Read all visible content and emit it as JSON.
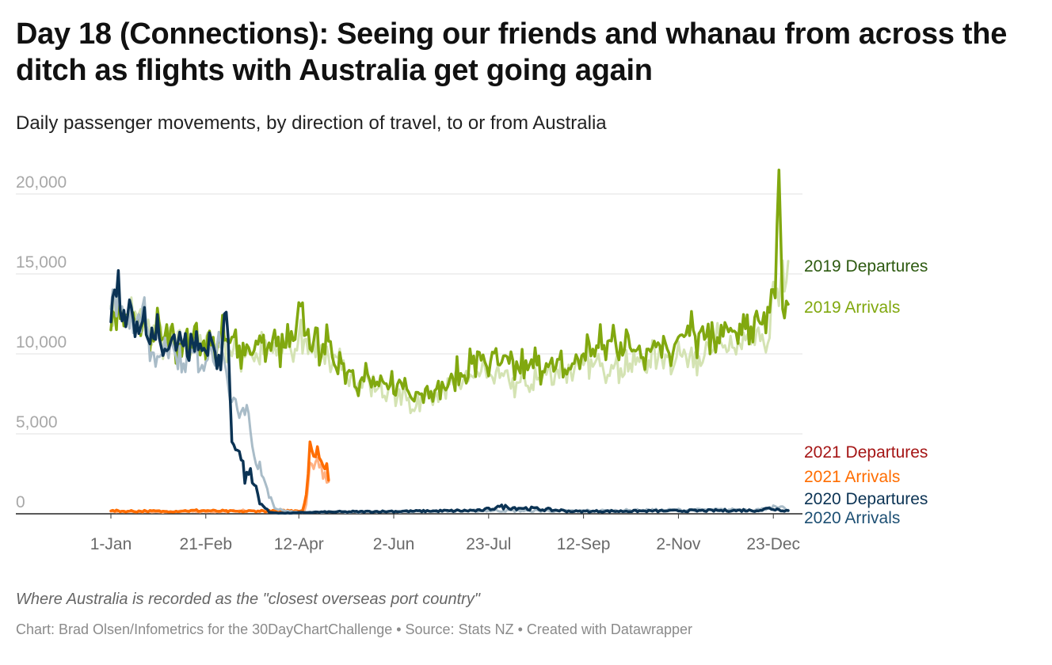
{
  "title": "Day 18 (Connections): Seeing our friends and whanau from across the ditch as flights with Australia get going again",
  "subtitle": "Daily passenger movements, by direction of travel, to or from Australia",
  "note": "Where Australia is recorded as the \"closest overseas port country\"",
  "credit": "Chart: Brad Olsen/Infometrics for the 30DayChartChallenge • Source: Stats NZ • Created with Datawrapper",
  "chart_data": {
    "type": "line",
    "title": "Day 18 (Connections): Seeing our friends and whanau from across the ditch as flights with Australia get going again",
    "subtitle": "Daily passenger movements, by direction of travel, to or from Australia",
    "xlabel": "",
    "ylabel": "",
    "x_unit": "day of year",
    "xlim": [
      1,
      365
    ],
    "ylim": [
      0,
      21500
    ],
    "y_ticks": [
      0,
      5000,
      10000,
      15000,
      20000
    ],
    "y_tick_labels": [
      "0",
      "5,000",
      "10,000",
      "15,000",
      "20,000"
    ],
    "x_ticks": [
      1,
      52,
      102,
      153,
      204,
      255,
      306,
      357
    ],
    "x_tick_labels": [
      "1-Jan",
      "21-Feb",
      "12-Apr",
      "2-Jun",
      "23-Jul",
      "12-Sep",
      "2-Nov",
      "23-Dec"
    ],
    "grid": true,
    "legend": "direct labels at right",
    "series": [
      {
        "name": "2019 Departures",
        "color": "#d4e3b3",
        "width": 3,
        "x": [
          1,
          6,
          10,
          15,
          20,
          25,
          30,
          35,
          40,
          45,
          50,
          55,
          60,
          65,
          70,
          75,
          80,
          85,
          90,
          95,
          100,
          105,
          110,
          115,
          120,
          125,
          130,
          135,
          140,
          145,
          150,
          155,
          160,
          165,
          170,
          175,
          180,
          185,
          190,
          195,
          200,
          205,
          210,
          215,
          220,
          225,
          230,
          235,
          240,
          245,
          250,
          255,
          260,
          265,
          270,
          275,
          280,
          285,
          290,
          295,
          300,
          305,
          310,
          315,
          320,
          325,
          330,
          335,
          340,
          345,
          350,
          355,
          357,
          360,
          365
        ],
        "values": [
          13000,
          12600,
          12000,
          12300,
          11800,
          11300,
          10900,
          10400,
          10900,
          10600,
          10300,
          10800,
          10500,
          10200,
          9900,
          10400,
          9700,
          10300,
          9900,
          10500,
          10300,
          10900,
          10700,
          10200,
          9300,
          9000,
          8700,
          8300,
          8200,
          7900,
          7700,
          7300,
          7100,
          6700,
          7400,
          7300,
          7800,
          8100,
          8200,
          8600,
          8900,
          8700,
          8500,
          8300,
          8200,
          8000,
          8400,
          8700,
          8900,
          9100,
          9000,
          9300,
          9200,
          9400,
          9300,
          9100,
          9400,
          9500,
          9600,
          9700,
          9800,
          9800,
          9900,
          10100,
          9900,
          10300,
          10400,
          10400,
          10300,
          10600,
          10800,
          11000,
          14500,
          13000,
          15800
        ]
      },
      {
        "name": "2019 Arrivals",
        "color": "#81a80f",
        "width": 3.5,
        "x": [
          1,
          3,
          6,
          10,
          15,
          20,
          25,
          30,
          35,
          40,
          45,
          50,
          55,
          60,
          65,
          70,
          75,
          80,
          85,
          90,
          95,
          100,
          103,
          106,
          110,
          115,
          120,
          125,
          130,
          135,
          140,
          145,
          150,
          155,
          160,
          165,
          170,
          175,
          180,
          185,
          190,
          195,
          200,
          205,
          210,
          215,
          220,
          225,
          230,
          235,
          240,
          245,
          250,
          255,
          260,
          265,
          270,
          275,
          280,
          285,
          290,
          295,
          300,
          305,
          310,
          315,
          320,
          325,
          330,
          335,
          340,
          345,
          350,
          355,
          358,
          360,
          362,
          365
        ],
        "values": [
          11500,
          12500,
          12200,
          11900,
          11700,
          11500,
          11300,
          11100,
          11000,
          10700,
          10900,
          10600,
          10500,
          10800,
          10700,
          10500,
          10400,
          10600,
          10300,
          10500,
          10400,
          10900,
          13000,
          11200,
          10800,
          10600,
          9800,
          9400,
          8900,
          8300,
          8400,
          8000,
          7800,
          8100,
          7800,
          7600,
          7800,
          7700,
          7900,
          8400,
          8600,
          9400,
          9600,
          9500,
          9300,
          9400,
          9100,
          9000,
          9300,
          9400,
          9100,
          9000,
          9400,
          10000,
          10300,
          10300,
          10800,
          10700,
          10400,
          10500,
          10300,
          10700,
          10300,
          10800,
          11200,
          11100,
          10900,
          11000,
          11100,
          11400,
          11200,
          11700,
          11900,
          12600,
          13500,
          21500,
          12800,
          13100
        ]
      },
      {
        "name": "2021 Departures",
        "color": "#ffb183",
        "width": 3,
        "x": [
          1,
          10,
          20,
          30,
          40,
          50,
          60,
          70,
          80,
          90,
          100,
          105,
          106,
          108,
          110,
          112,
          114,
          116,
          118
        ],
        "values": [
          150,
          120,
          130,
          110,
          150,
          140,
          120,
          200,
          160,
          130,
          180,
          170,
          600,
          3200,
          2800,
          3500,
          3100,
          2600,
          2000
        ]
      },
      {
        "name": "2021 Arrivals",
        "color": "#ff6d00",
        "width": 3.5,
        "x": [
          1,
          10,
          20,
          30,
          40,
          50,
          60,
          70,
          80,
          90,
          100,
          104,
          106,
          108,
          110,
          112,
          114,
          116,
          118
        ],
        "values": [
          180,
          160,
          170,
          150,
          180,
          200,
          170,
          140,
          180,
          160,
          200,
          190,
          1200,
          4500,
          3600,
          4200,
          3300,
          2800,
          2100
        ]
      },
      {
        "name": "2020 Departures",
        "color": "#a9bcc8",
        "width": 3,
        "x": [
          1,
          3,
          6,
          10,
          15,
          20,
          25,
          30,
          35,
          40,
          45,
          50,
          55,
          60,
          62,
          66,
          70,
          74,
          78,
          82,
          86,
          90,
          95,
          100,
          105,
          110,
          150,
          200,
          250,
          300,
          350,
          355,
          360,
          365
        ],
        "values": [
          12800,
          13700,
          12900,
          12500,
          12200,
          11800,
          9200,
          11000,
          10200,
          9400,
          10100,
          9300,
          10400,
          10500,
          9500,
          7000,
          6000,
          6800,
          3600,
          2400,
          1000,
          300,
          150,
          120,
          100,
          110,
          130,
          200,
          180,
          230,
          260,
          420,
          380,
          240
        ]
      },
      {
        "name": "2020 Arrivals",
        "color": "#0b3354",
        "width": 3.5,
        "x": [
          1,
          3,
          6,
          10,
          15,
          20,
          25,
          30,
          35,
          40,
          45,
          50,
          55,
          60,
          62,
          64,
          66,
          68,
          70,
          74,
          78,
          82,
          86,
          90,
          95,
          100,
          105,
          110,
          150,
          200,
          210,
          250,
          300,
          350,
          355,
          360,
          365
        ],
        "values": [
          12000,
          14000,
          12700,
          12400,
          12000,
          11200,
          10900,
          10300,
          11200,
          10500,
          10700,
          10200,
          10900,
          9000,
          12500,
          11000,
          4500,
          4000,
          3900,
          2600,
          1800,
          600,
          100,
          60,
          40,
          60,
          80,
          100,
          150,
          200,
          450,
          150,
          180,
          220,
          350,
          260,
          200
        ]
      }
    ]
  }
}
